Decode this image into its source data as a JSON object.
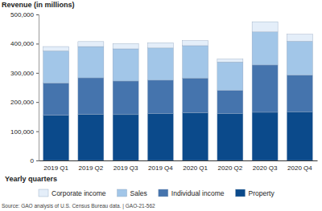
{
  "chart_data": {
    "type": "bar",
    "stacked": true,
    "y_label": "Revenue (in millions)",
    "x_label": "Yearly quarters",
    "source": "Source: GAO analysis of U.S. Census Bureau data.  |  GAO-21-562",
    "categories": [
      "2019 Q1",
      "2019 Q2",
      "2019 Q3",
      "2019 Q4",
      "2020 Q1",
      "2020 Q2",
      "2020 Q3",
      "2020 Q4"
    ],
    "series": [
      {
        "name": "Property",
        "color": "#0b4a8b",
        "values": [
          155000,
          158000,
          157000,
          160000,
          163000,
          160000,
          165000,
          167000
        ]
      },
      {
        "name": "Individual income",
        "color": "#4574ad",
        "values": [
          110000,
          125000,
          115000,
          115000,
          119000,
          80000,
          162000,
          125000
        ]
      },
      {
        "name": "Sales",
        "color": "#a2c6e8",
        "values": [
          110000,
          107000,
          110000,
          110000,
          111000,
          97000,
          113000,
          116000
        ]
      },
      {
        "name": "Corporate income",
        "color": "#e4eef9",
        "values": [
          15000,
          17000,
          18000,
          18000,
          17000,
          10000,
          35000,
          24000
        ]
      }
    ],
    "ylim": [
      0,
      500000
    ],
    "yticks": [
      0,
      {
        "value": 100000,
        "label": "100,000"
      },
      {
        "value": 200000,
        "label": "200,000"
      },
      {
        "value": 300000,
        "label": "300,000"
      },
      {
        "value": 400000,
        "label": "400,000"
      },
      {
        "value": 500000,
        "label": "500,000"
      }
    ],
    "grid": false,
    "legend": "bottom"
  }
}
